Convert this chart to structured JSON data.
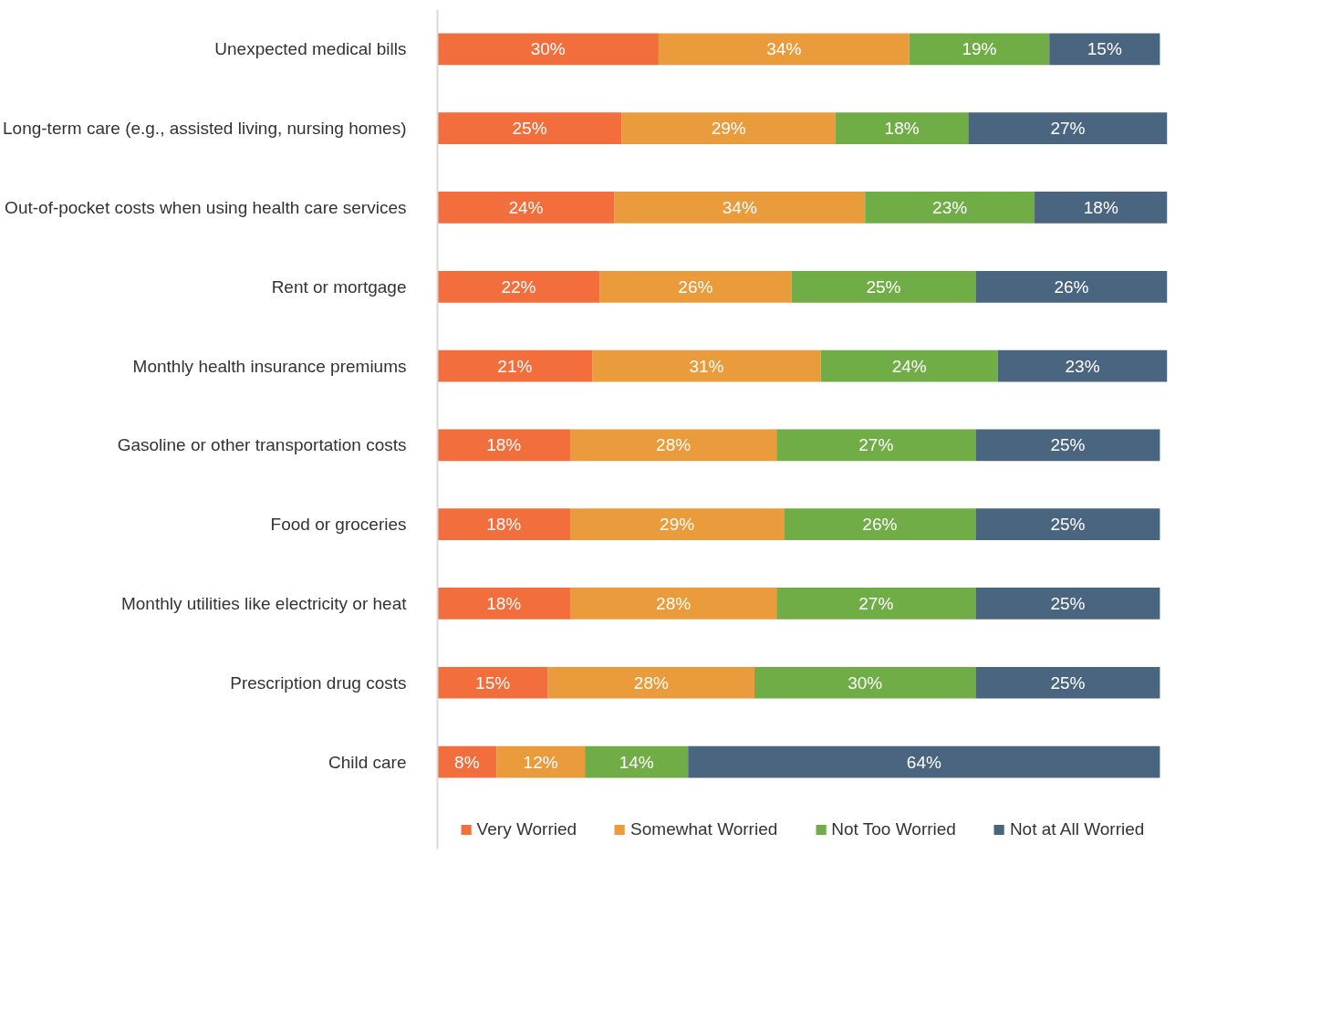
{
  "chart_data": {
    "type": "bar",
    "orientation": "horizontal",
    "stacked": true,
    "legend": "bottom",
    "grid": false,
    "categories": [
      "Unexpected medical bills",
      "Long-term care (e.g., assisted living, nursing homes)",
      "Out-of-pocket costs when using health care services",
      "Rent or mortgage",
      "Monthly health insurance premiums",
      "Gasoline or other transportation costs",
      "Food or groceries",
      "Monthly utilities like electricity or heat",
      "Prescription drug costs",
      "Child care"
    ],
    "series": [
      {
        "name": "Very Worried",
        "color": "#f26e3c",
        "values": [
          30,
          25,
          24,
          22,
          21,
          18,
          18,
          18,
          15,
          8
        ],
        "value_labels": [
          "30%",
          "25%",
          "24%",
          "22%",
          "21%",
          "18%",
          "18%",
          "18%",
          "15%",
          "8%"
        ]
      },
      {
        "name": "Somewhat Worried",
        "color": "#ea9b3c",
        "values": [
          34,
          29,
          34,
          26,
          31,
          28,
          29,
          28,
          28,
          12
        ],
        "value_labels": [
          "34%",
          "29%",
          "34%",
          "26%",
          "31%",
          "28%",
          "29%",
          "28%",
          "28%",
          "12%"
        ]
      },
      {
        "name": "Not Too Worried",
        "color": "#70ad47",
        "values": [
          19,
          18,
          23,
          25,
          24,
          27,
          26,
          27,
          30,
          14
        ],
        "value_labels": [
          "19%",
          "18%",
          "23%",
          "25%",
          "24%",
          "27%",
          "26%",
          "27%",
          "30%",
          "14%"
        ]
      },
      {
        "name": "Not at All Worried",
        "color": "#4a657f",
        "values": [
          15,
          27,
          18,
          26,
          23,
          25,
          25,
          25,
          25,
          64
        ],
        "value_labels": [
          "15%",
          "27%",
          "18%",
          "26%",
          "23%",
          "25%",
          "25%",
          "25%",
          "25%",
          "64%"
        ]
      }
    ]
  }
}
